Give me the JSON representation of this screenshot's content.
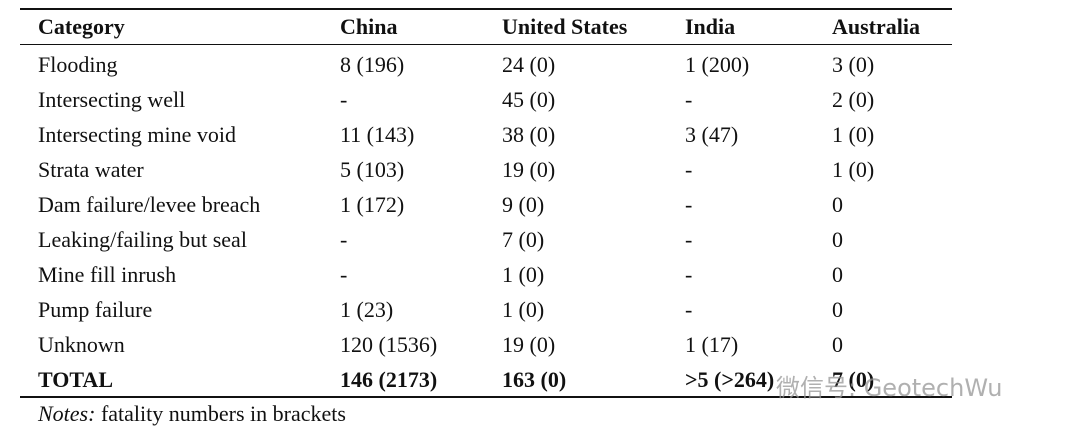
{
  "table": {
    "header": [
      "Category",
      "China",
      "United States",
      "India",
      "Australia"
    ],
    "rows": [
      [
        "Flooding",
        "8 (196)",
        "24 (0)",
        "1 (200)",
        "3 (0)"
      ],
      [
        "Intersecting well",
        "-",
        "45 (0)",
        "-",
        "2 (0)"
      ],
      [
        "Intersecting mine void",
        "11 (143)",
        "38 (0)",
        "3 (47)",
        "1 (0)"
      ],
      [
        "Strata water",
        "5 (103)",
        "19 (0)",
        "-",
        "1 (0)"
      ],
      [
        "Dam failure/levee breach",
        "1 (172)",
        "9 (0)",
        "-",
        "0"
      ],
      [
        "Leaking/failing but seal",
        "-",
        "7 (0)",
        "-",
        "0"
      ],
      [
        "Mine fill inrush",
        "-",
        "1 (0)",
        "-",
        "0"
      ],
      [
        "Pump failure",
        "1 (23)",
        "1 (0)",
        "-",
        "0"
      ],
      [
        "Unknown",
        "120 (1536)",
        "19 (0)",
        "1 (17)",
        "0"
      ]
    ],
    "total": [
      "TOTAL",
      "146 (2173)",
      "163 (0)",
      ">5 (>264)",
      "7 (0)"
    ]
  },
  "notes": {
    "label": "Notes:",
    "text": "fatality numbers in brackets"
  },
  "watermark": "微信号: GeotechWu"
}
